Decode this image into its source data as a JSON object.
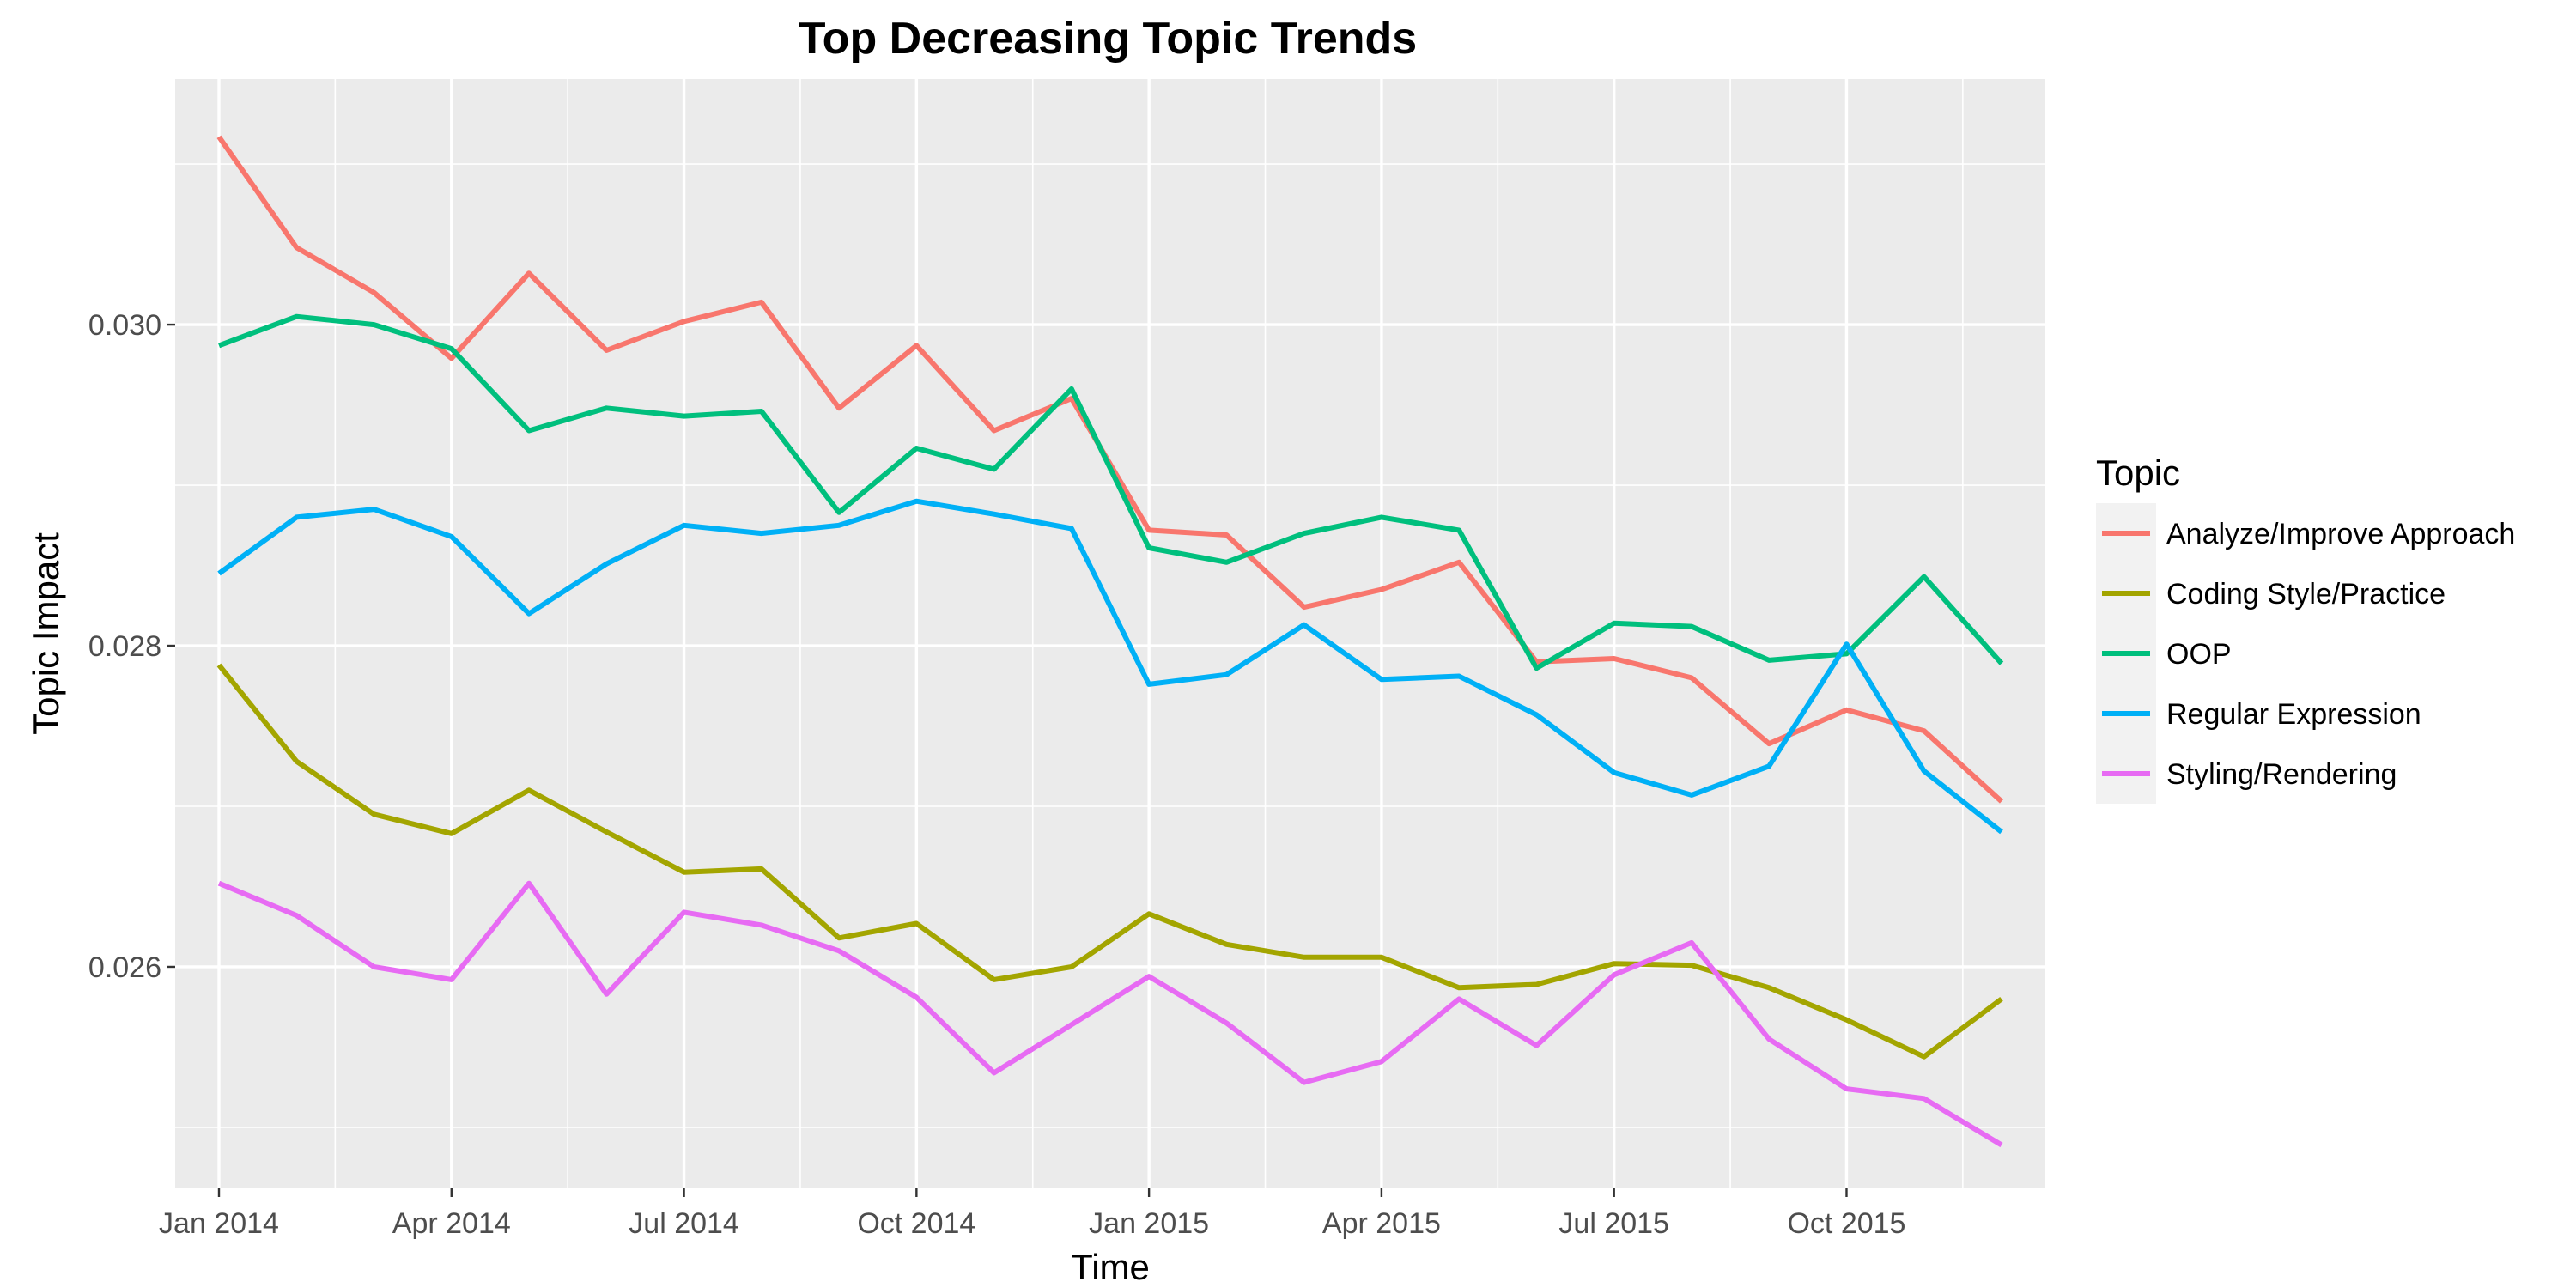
{
  "chart_data": {
    "type": "line",
    "title": "Top Decreasing Topic Trends",
    "xlabel": "Time",
    "ylabel": "Topic Impact",
    "x": [
      "2014-01",
      "2014-02",
      "2014-03",
      "2014-04",
      "2014-05",
      "2014-06",
      "2014-07",
      "2014-08",
      "2014-09",
      "2014-10",
      "2014-11",
      "2014-12",
      "2015-01",
      "2015-02",
      "2015-03",
      "2015-04",
      "2015-05",
      "2015-06",
      "2015-07",
      "2015-08",
      "2015-09",
      "2015-10",
      "2015-11",
      "2015-12"
    ],
    "x_ticks": [
      {
        "x": "2014-01",
        "label": "Jan 2014"
      },
      {
        "x": "2014-04",
        "label": "Apr 2014"
      },
      {
        "x": "2014-07",
        "label": "Jul 2014"
      },
      {
        "x": "2014-10",
        "label": "Oct 2014"
      },
      {
        "x": "2015-01",
        "label": "Jan 2015"
      },
      {
        "x": "2015-04",
        "label": "Apr 2015"
      },
      {
        "x": "2015-07",
        "label": "Jul 2015"
      },
      {
        "x": "2015-10",
        "label": "Oct 2015"
      }
    ],
    "y_ticks": [
      {
        "value": 0.026,
        "label": "0.026"
      },
      {
        "value": 0.028,
        "label": "0.028"
      },
      {
        "value": 0.03,
        "label": "0.030"
      }
    ],
    "ylim": [
      0.02462,
      0.03153
    ],
    "grid": true,
    "legend": {
      "title": "Topic",
      "position": "right"
    },
    "series": [
      {
        "name": "Analyze/Improve Approach",
        "color": "#F8766D",
        "values": [
          0.03117,
          0.03048,
          0.0302,
          0.02979,
          0.03032,
          0.02984,
          0.03002,
          0.03014,
          0.02948,
          0.02987,
          0.02934,
          0.02954,
          0.02872,
          0.02869,
          0.02824,
          0.02835,
          0.02852,
          0.0279,
          0.02792,
          0.0278,
          0.02739,
          0.0276,
          0.02747,
          0.02703
        ]
      },
      {
        "name": "Coding Style/Practice",
        "color": "#A3A500",
        "values": [
          0.02788,
          0.02728,
          0.02695,
          0.02683,
          0.0271,
          0.02684,
          0.02659,
          0.02661,
          0.02618,
          0.02627,
          0.02592,
          0.026,
          0.02633,
          0.02614,
          0.02606,
          0.02606,
          0.02587,
          0.02589,
          0.02602,
          0.02601,
          0.02587,
          0.02567,
          0.02544,
          0.0258
        ]
      },
      {
        "name": "OOP",
        "color": "#00BF7D",
        "values": [
          0.02987,
          0.03005,
          0.03,
          0.02985,
          0.02934,
          0.02948,
          0.02943,
          0.02946,
          0.02883,
          0.02923,
          0.0291,
          0.0296,
          0.02861,
          0.02852,
          0.0287,
          0.0288,
          0.02872,
          0.02786,
          0.02814,
          0.02812,
          0.02791,
          0.02795,
          0.02843,
          0.02789
        ]
      },
      {
        "name": "Regular Expression",
        "color": "#00B0F6",
        "values": [
          0.02845,
          0.0288,
          0.02885,
          0.02868,
          0.0282,
          0.02851,
          0.02875,
          0.0287,
          0.02875,
          0.0289,
          0.02882,
          0.02873,
          0.02776,
          0.02782,
          0.02813,
          0.02779,
          0.02781,
          0.02757,
          0.02721,
          0.02707,
          0.02725,
          0.02801,
          0.02722,
          0.02684
        ]
      },
      {
        "name": "Styling/Rendering",
        "color": "#E76BF3",
        "values": [
          0.02652,
          0.02632,
          0.026,
          0.02592,
          0.02652,
          0.02583,
          0.02634,
          0.02626,
          0.0261,
          0.02581,
          0.02534,
          0.02564,
          0.02594,
          0.02565,
          0.02528,
          0.02541,
          0.0258,
          0.02551,
          0.02595,
          0.02615,
          0.02555,
          0.02524,
          0.02518,
          0.02489
        ]
      }
    ]
  }
}
